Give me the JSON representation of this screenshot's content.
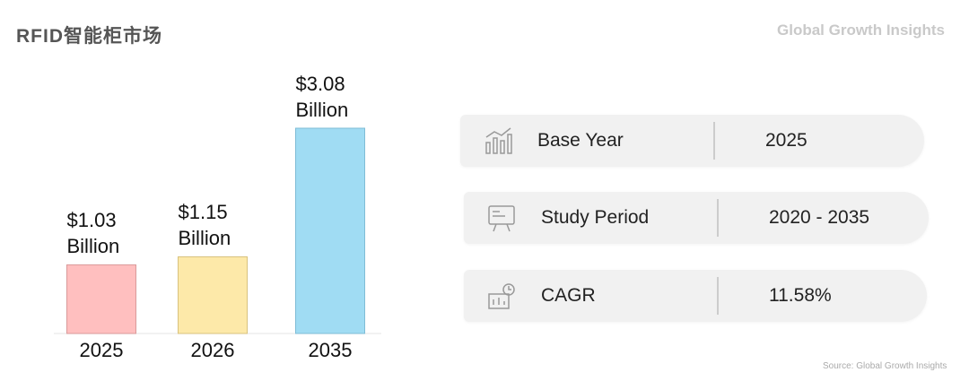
{
  "chart_data": {
    "type": "bar",
    "title": "RFID智能柜市场",
    "categories": [
      "2025",
      "2026",
      "2035"
    ],
    "values": [
      1.03,
      1.15,
      3.08
    ],
    "value_labels": [
      "$1.03 Billion",
      "$1.15 Billion",
      "$3.08 Billion"
    ],
    "colors": [
      "#ffbfbf",
      "#fde9a9",
      "#a0dcf3"
    ],
    "edge_colors": [
      "#d99a9a",
      "#d8c27e",
      "#7fbcd6"
    ]
  },
  "brand": "Global Growth Insights",
  "stats": [
    {
      "label": "Base Year",
      "value": "2025"
    },
    {
      "label": "Study Period",
      "value": "2020 - 2035"
    },
    {
      "label": "CAGR",
      "value": "11.58%"
    }
  ],
  "source": "Source: Global Growth Insights"
}
